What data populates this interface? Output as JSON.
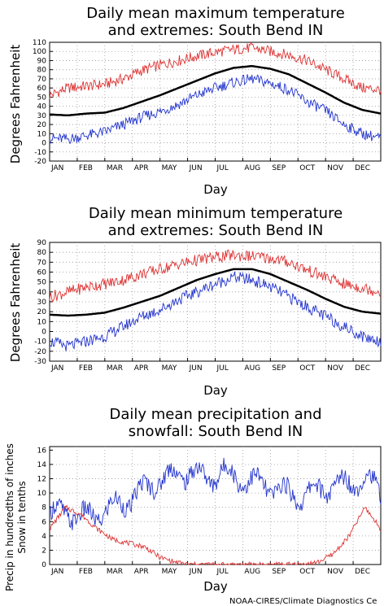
{
  "credit": "NOAA-CIRES/Climate Diagnostics Ce",
  "colors": {
    "black": "#000000",
    "red": "#dd3333",
    "blue": "#2233cc",
    "grid": "#9a9a9a"
  },
  "chart_data": [
    {
      "type": "line",
      "title_lines": [
        "Daily mean maximum temperature",
        "and extremes: South Bend IN"
      ],
      "xlabel": "Day",
      "ylabel": "Degrees Fahrenheit",
      "x_ticks": [
        "JAN",
        "FEB",
        "MAR",
        "APR",
        "MAY",
        "JUN",
        "JUL",
        "AUG",
        "SEP",
        "OCT",
        "NOV",
        "DEC"
      ],
      "ylim": [
        -20,
        110
      ],
      "y_ticks": [
        -20,
        -10,
        0,
        10,
        20,
        30,
        40,
        50,
        60,
        70,
        80,
        90,
        100,
        110
      ],
      "grid": true,
      "series": [
        {
          "color": "black",
          "values": [
            31,
            30,
            32,
            33,
            38,
            45,
            52,
            60,
            68,
            76,
            82,
            84,
            81,
            75,
            65,
            55,
            44,
            36,
            32
          ]
        },
        {
          "color": "red",
          "values": [
            52,
            60,
            62,
            64,
            70,
            79,
            85,
            90,
            95,
            99,
            102,
            104,
            100,
            96,
            90,
            80,
            70,
            60,
            58
          ]
        },
        {
          "color": "blue",
          "values": [
            5,
            4,
            8,
            12,
            20,
            28,
            34,
            42,
            52,
            60,
            66,
            70,
            65,
            58,
            45,
            35,
            20,
            10,
            5
          ]
        }
      ]
    },
    {
      "type": "line",
      "title_lines": [
        "Daily mean minimum temperature",
        "and extremes: South Bend IN"
      ],
      "xlabel": "Day",
      "ylabel": "Degrees Fahrenheit",
      "x_ticks": [
        "JAN",
        "FEB",
        "MAR",
        "APR",
        "MAY",
        "JUN",
        "JUL",
        "AUG",
        "SEP",
        "OCT",
        "NOV",
        "DEC"
      ],
      "ylim": [
        -30,
        90
      ],
      "y_ticks": [
        -30,
        -20,
        -10,
        0,
        10,
        20,
        30,
        40,
        50,
        60,
        70,
        80,
        90
      ],
      "grid": true,
      "series": [
        {
          "color": "black",
          "values": [
            17,
            16,
            17,
            19,
            24,
            30,
            36,
            44,
            52,
            58,
            63,
            63,
            58,
            50,
            42,
            33,
            25,
            20,
            18
          ]
        },
        {
          "color": "red",
          "values": [
            35,
            40,
            45,
            48,
            52,
            58,
            63,
            68,
            72,
            75,
            77,
            76,
            74,
            70,
            62,
            55,
            48,
            44,
            40
          ]
        },
        {
          "color": "blue",
          "values": [
            -10,
            -15,
            -10,
            -5,
            5,
            15,
            22,
            32,
            40,
            48,
            55,
            52,
            45,
            35,
            25,
            15,
            5,
            -5,
            -10
          ]
        }
      ]
    },
    {
      "type": "line",
      "title_lines": [
        "Daily mean precipitation and",
        "snowfall: South Bend IN"
      ],
      "xlabel": "Day",
      "ylabel_lines": [
        "Precip in hundredths of inches",
        "Snow in tenths"
      ],
      "x_ticks": [
        "JAN",
        "FEB",
        "MAR",
        "APR",
        "MAY",
        "JUN",
        "JUL",
        "AUG",
        "SEP",
        "OCT",
        "NOV",
        "DEC"
      ],
      "ylim": [
        0,
        16.5
      ],
      "y_ticks": [
        0,
        2,
        4,
        6,
        8,
        10,
        12,
        14,
        16
      ],
      "grid": true,
      "series": [
        {
          "color": "blue",
          "values": [
            7,
            7.5,
            6.5,
            7,
            8,
            9,
            10.5,
            12,
            12.5,
            13,
            12,
            13,
            12,
            11.5,
            11,
            10,
            9.5,
            10.5,
            11,
            11.5,
            12,
            10.5
          ]
        },
        {
          "color": "red",
          "values": [
            5,
            8,
            7,
            5,
            3.5,
            3,
            2.5,
            1,
            0.3,
            0,
            0,
            0,
            0,
            0,
            0,
            0,
            0,
            0.3,
            1.5,
            4,
            8,
            5
          ]
        }
      ]
    }
  ]
}
